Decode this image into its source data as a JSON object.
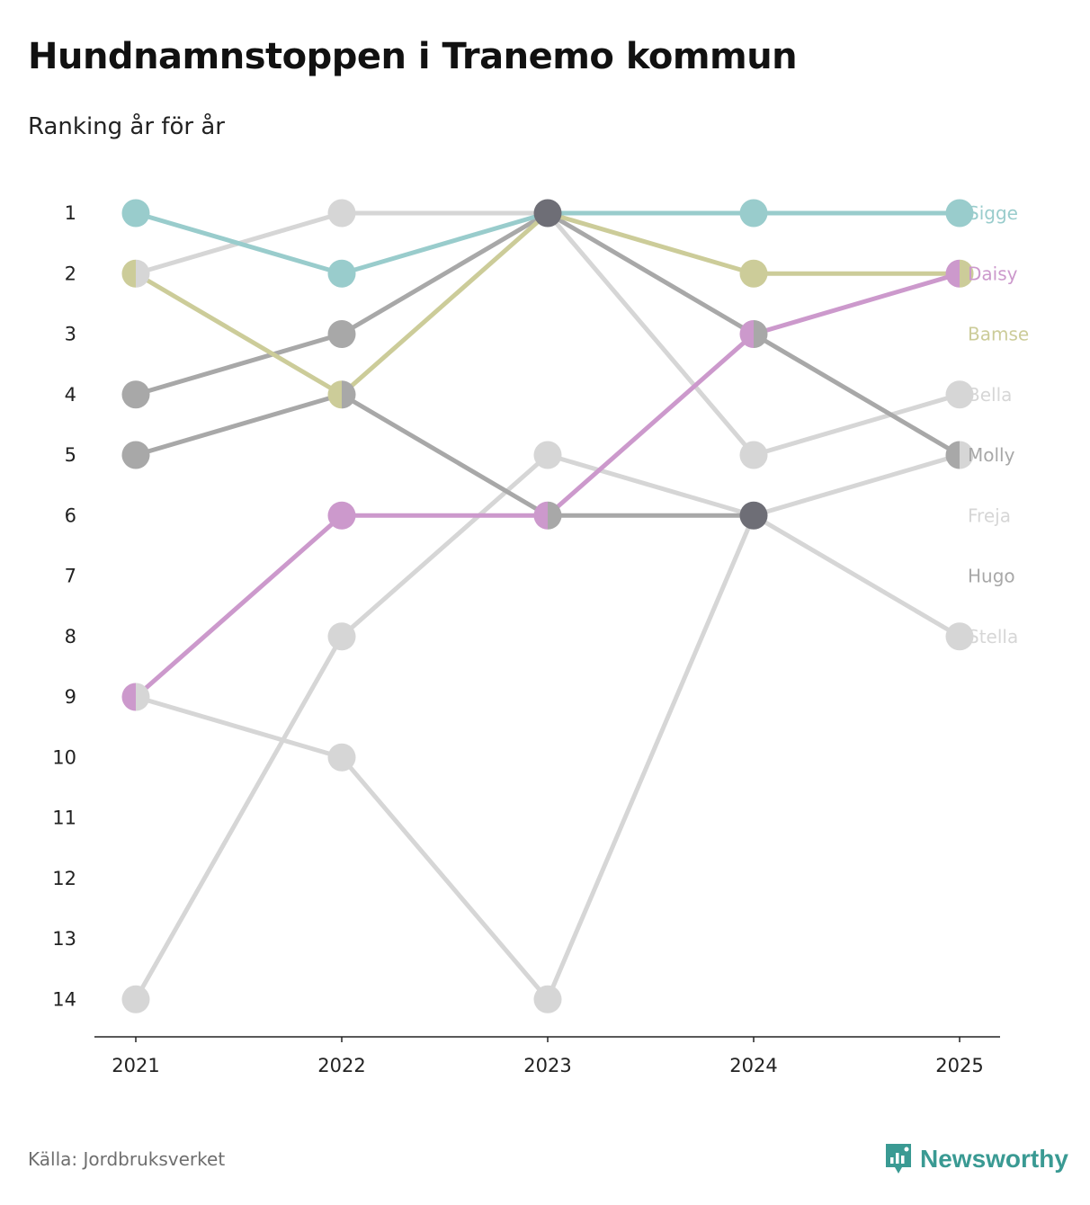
{
  "header": {
    "title": "Hundnamnstoppen i Tranemo kommun",
    "subtitle": "Ranking år för år"
  },
  "footer": {
    "source": "Källa: Jordbruksverket",
    "brand": "Newsworthy"
  },
  "chart_data": {
    "type": "line",
    "subtype": "bump",
    "title": "Hundnamnstoppen i Tranemo kommun",
    "subtitle": "Ranking år för år",
    "xlabel": "",
    "ylabel": "",
    "categories": [
      "2021",
      "2022",
      "2023",
      "2024",
      "2025"
    ],
    "y_ticks": [
      1,
      2,
      3,
      4,
      5,
      6,
      7,
      8,
      9,
      10,
      11,
      12,
      13,
      14
    ],
    "ylim": [
      1,
      14
    ],
    "y_inverted": true,
    "grid": false,
    "legend": "direct labels at right end",
    "series": [
      {
        "name": "Freja",
        "color": "#d6d6d6",
        "values": [
          14,
          8,
          5,
          6,
          5
        ]
      },
      {
        "name": "Stella",
        "color": "#d6d6d6",
        "values": [
          9,
          10,
          14,
          6,
          8
        ]
      },
      {
        "name": "Bella",
        "color": "#d6d6d6",
        "values": [
          2,
          1,
          1,
          5,
          4
        ]
      },
      {
        "name": "Hugo",
        "color": "#a8a8a8",
        "values": [
          5,
          4,
          6,
          6,
          null
        ]
      },
      {
        "name": "Molly",
        "color": "#a8a8a8",
        "values": [
          4,
          3,
          1,
          3,
          5
        ]
      },
      {
        "name": "Bamse",
        "color": "#cccc99",
        "values": [
          2,
          4,
          1,
          2,
          2
        ]
      },
      {
        "name": "Daisy",
        "color": "#cc99cc",
        "values": [
          9,
          6,
          6,
          3,
          2
        ]
      },
      {
        "name": "Sigge",
        "color": "#99cccc",
        "values": [
          1,
          2,
          1,
          1,
          1
        ]
      }
    ],
    "overlap_color": "#6e6e76",
    "end_labels": [
      {
        "name": "Sigge",
        "color": "#99cccc"
      },
      {
        "name": "Daisy",
        "color": "#cc99cc"
      },
      {
        "name": "Bamse",
        "color": "#cccc99"
      },
      {
        "name": "Bella",
        "color": "#d6d6d6"
      },
      {
        "name": "Molly",
        "color": "#a8a8a8"
      },
      {
        "name": "Freja",
        "color": "#d6d6d6"
      },
      {
        "name": "Hugo",
        "color": "#a8a8a8"
      },
      {
        "name": "Stella",
        "color": "#d6d6d6"
      }
    ]
  }
}
